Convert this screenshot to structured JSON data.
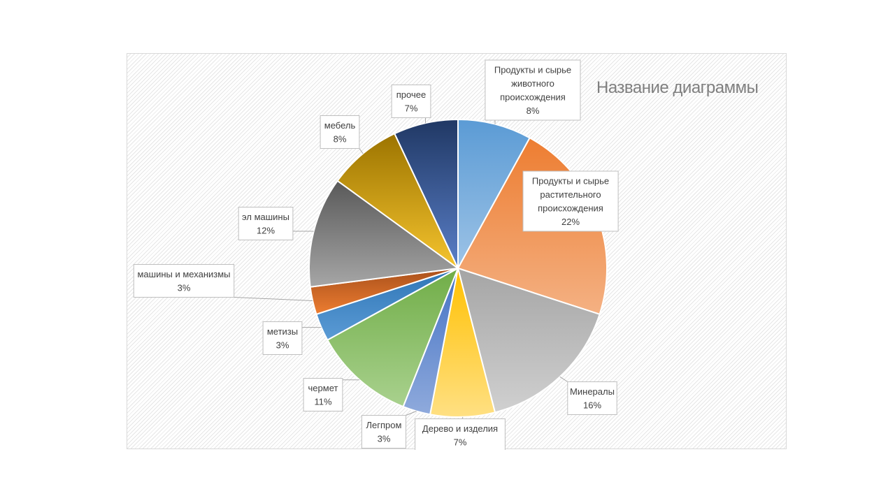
{
  "chart_data": {
    "type": "pie",
    "title": "Название диаграммы",
    "unit": "%",
    "slices": [
      {
        "label": [
          "Продукты  и сырье",
          "животного",
          "происхождения"
        ],
        "value": 8,
        "color_light": "#9dc3e6",
        "color_dark": "#5b9bd5"
      },
      {
        "label": [
          "Продукты  и сырье",
          "растительного",
          "происхождения"
        ],
        "value": 22,
        "color_light": "#f4b183",
        "color_dark": "#ed7d31"
      },
      {
        "label": [
          "Минералы"
        ],
        "value": 16,
        "color_light": "#d0d0d0",
        "color_dark": "#a5a5a5"
      },
      {
        "label": [
          "Дерево и изделия"
        ],
        "value": 7,
        "color_light": "#ffe083",
        "color_dark": "#ffc000"
      },
      {
        "label": [
          "Легпром"
        ],
        "value": 3,
        "color_light": "#8faadc",
        "color_dark": "#4472c4"
      },
      {
        "label": [
          "чермет"
        ],
        "value": 11,
        "color_light": "#a9d18e",
        "color_dark": "#70ad47"
      },
      {
        "label": [
          "метизы"
        ],
        "value": 3,
        "color_light": "#5b9bd5",
        "color_dark": "#2e75b6"
      },
      {
        "label": [
          "машины и механизмы"
        ],
        "value": 3,
        "color_light": "#ed7d31",
        "color_dark": "#a9501b"
      },
      {
        "label": [
          "эл машины"
        ],
        "value": 12,
        "color_light": "#a6a6a6",
        "color_dark": "#595959"
      },
      {
        "label": [
          "мебель"
        ],
        "value": 8,
        "color_light": "#f5c42e",
        "color_dark": "#9c7400"
      },
      {
        "label": [
          "прочее"
        ],
        "value": 7,
        "color_light": "#5a7fc8",
        "color_dark": "#203864"
      }
    ]
  }
}
